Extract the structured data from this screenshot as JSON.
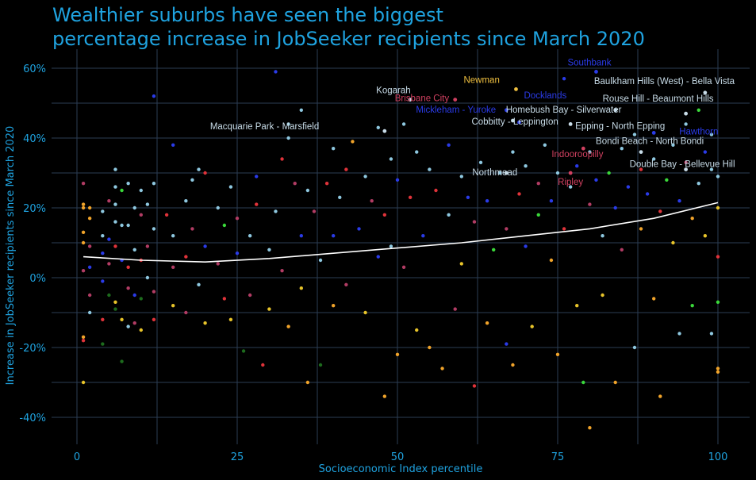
{
  "chart_data": {
    "type": "scatter",
    "title_lines": [
      "Wealthier suburbs have seen the biggest",
      "percentage increase in JobSeeker recipients since March 2020"
    ],
    "xlabel": "Socioeconomic Index percentile",
    "ylabel": "Increase in JobSeeker recipients since March 2020",
    "xlim": [
      -4,
      104
    ],
    "ylim": [
      -48,
      66
    ],
    "xticks": [
      0,
      25,
      50,
      75,
      100
    ],
    "yticks": [
      60,
      40,
      20,
      0,
      -20,
      -40
    ],
    "ytick_labels": [
      "60%",
      "40%",
      "20%",
      "0%",
      "-20%",
      "-40%"
    ],
    "grid": true,
    "palette": [
      "#8ec8e0",
      "#2a3be8",
      "#e0333a",
      "#b23c64",
      "#f0a32a",
      "#e8c42a",
      "#3ad83a",
      "#1d6b1d"
    ],
    "points": [
      [
        1,
        27,
        3
      ],
      [
        1,
        21,
        4
      ],
      [
        1,
        20,
        4
      ],
      [
        1,
        13,
        4
      ],
      [
        1,
        10,
        4
      ],
      [
        1,
        2,
        3
      ],
      [
        1,
        -17,
        4
      ],
      [
        1,
        -18,
        2
      ],
      [
        1,
        -30,
        5
      ],
      [
        2,
        20,
        4
      ],
      [
        2,
        17,
        4
      ],
      [
        2,
        9,
        3
      ],
      [
        2,
        3,
        1
      ],
      [
        2,
        -5,
        3
      ],
      [
        2,
        -10,
        0
      ],
      [
        4,
        19,
        0
      ],
      [
        4,
        12,
        0
      ],
      [
        4,
        7,
        1
      ],
      [
        4,
        -1,
        1
      ],
      [
        4,
        -12,
        2
      ],
      [
        4,
        -19,
        7
      ],
      [
        5,
        22,
        3
      ],
      [
        5,
        11,
        1
      ],
      [
        5,
        4,
        3
      ],
      [
        5,
        -5,
        7
      ],
      [
        6,
        31,
        0
      ],
      [
        6,
        26,
        0
      ],
      [
        6,
        21,
        0
      ],
      [
        6,
        16,
        0
      ],
      [
        6,
        9,
        2
      ],
      [
        6,
        -7,
        5
      ],
      [
        6,
        -9,
        7
      ],
      [
        7,
        25,
        6
      ],
      [
        7,
        15,
        0
      ],
      [
        7,
        5,
        1
      ],
      [
        7,
        -12,
        5
      ],
      [
        7,
        -24,
        7
      ],
      [
        8,
        27,
        0
      ],
      [
        8,
        15,
        0
      ],
      [
        8,
        3,
        2
      ],
      [
        8,
        -3,
        3
      ],
      [
        8,
        -14,
        0
      ],
      [
        9,
        20,
        0
      ],
      [
        9,
        8,
        0
      ],
      [
        9,
        -5,
        1
      ],
      [
        9,
        -13,
        3
      ],
      [
        10,
        25,
        0
      ],
      [
        10,
        18,
        3
      ],
      [
        10,
        5,
        2
      ],
      [
        10,
        -6,
        7
      ],
      [
        10,
        -15,
        5
      ],
      [
        11,
        21,
        0
      ],
      [
        11,
        9,
        3
      ],
      [
        11,
        0,
        0
      ],
      [
        12,
        52,
        1
      ],
      [
        12,
        27,
        0
      ],
      [
        12,
        14,
        0
      ],
      [
        12,
        -4,
        3
      ],
      [
        12,
        -12,
        2
      ],
      [
        14,
        18,
        2
      ],
      [
        15,
        38,
        1
      ],
      [
        15,
        12,
        0
      ],
      [
        15,
        3,
        3
      ],
      [
        15,
        -8,
        5
      ],
      [
        17,
        22,
        0
      ],
      [
        17,
        6,
        2
      ],
      [
        17,
        -10,
        3
      ],
      [
        18,
        28,
        0
      ],
      [
        18,
        14,
        3
      ],
      [
        19,
        31,
        0
      ],
      [
        19,
        -2,
        0
      ],
      [
        20,
        30,
        2
      ],
      [
        20,
        9,
        1
      ],
      [
        20,
        -13,
        5
      ],
      [
        22,
        20,
        0
      ],
      [
        22,
        4,
        3
      ],
      [
        23,
        15,
        6
      ],
      [
        23,
        -6,
        2
      ],
      [
        24,
        26,
        0
      ],
      [
        24,
        -12,
        5
      ],
      [
        25,
        17,
        3
      ],
      [
        25,
        7,
        1
      ],
      [
        26,
        -21,
        7
      ],
      [
        27,
        12,
        0
      ],
      [
        27,
        -5,
        3
      ],
      [
        28,
        29,
        1
      ],
      [
        28,
        21,
        2
      ],
      [
        29,
        -25,
        2
      ],
      [
        30,
        8,
        0
      ],
      [
        30,
        -9,
        5
      ],
      [
        31,
        59,
        1
      ],
      [
        31,
        19,
        0
      ],
      [
        32,
        34,
        2
      ],
      [
        32,
        2,
        3
      ],
      [
        33,
        44,
        0
      ],
      [
        33,
        40,
        0
      ],
      [
        33,
        -14,
        4
      ],
      [
        34,
        27,
        3
      ],
      [
        35,
        48,
        0
      ],
      [
        35,
        12,
        1
      ],
      [
        35,
        -3,
        5
      ],
      [
        36,
        25,
        0
      ],
      [
        36,
        -30,
        4
      ],
      [
        37,
        19,
        3
      ],
      [
        38,
        -25,
        7
      ],
      [
        38,
        5,
        0
      ],
      [
        39,
        27,
        2
      ],
      [
        40,
        37,
        0
      ],
      [
        40,
        12,
        1
      ],
      [
        40,
        -8,
        4
      ],
      [
        41,
        23,
        0
      ],
      [
        42,
        31,
        2
      ],
      [
        42,
        -2,
        3
      ],
      [
        43,
        39,
        4
      ],
      [
        44,
        14,
        1
      ],
      [
        45,
        29,
        0
      ],
      [
        45,
        -10,
        5
      ],
      [
        46,
        22,
        3
      ],
      [
        47,
        43,
        0
      ],
      [
        47,
        6,
        1
      ],
      [
        48,
        -34,
        4
      ],
      [
        48,
        18,
        2
      ],
      [
        49,
        34,
        0
      ],
      [
        49,
        9,
        0
      ],
      [
        50,
        -22,
        4
      ],
      [
        50,
        28,
        1
      ],
      [
        51,
        44,
        0
      ],
      [
        51,
        3,
        3
      ],
      [
        52,
        23,
        2
      ],
      [
        53,
        -15,
        5
      ],
      [
        53,
        36,
        0
      ],
      [
        54,
        12,
        1
      ],
      [
        55,
        -20,
        4
      ],
      [
        55,
        31,
        0
      ],
      [
        56,
        25,
        2
      ],
      [
        57,
        -26,
        4
      ],
      [
        58,
        38,
        1
      ],
      [
        58,
        18,
        0
      ],
      [
        59,
        -9,
        3
      ],
      [
        60,
        29,
        0
      ],
      [
        60,
        4,
        5
      ],
      [
        61,
        23,
        1
      ],
      [
        62,
        -31,
        2
      ],
      [
        62,
        16,
        3
      ],
      [
        63,
        33,
        0
      ],
      [
        64,
        -13,
        4
      ],
      [
        64,
        22,
        1
      ],
      [
        65,
        8,
        6
      ],
      [
        66,
        30,
        0
      ],
      [
        67,
        -19,
        1
      ],
      [
        67,
        14,
        3
      ],
      [
        68,
        36,
        0
      ],
      [
        68,
        -25,
        4
      ],
      [
        69,
        24,
        2
      ],
      [
        70,
        9,
        1
      ],
      [
        70,
        32,
        0
      ],
      [
        71,
        -14,
        5
      ],
      [
        72,
        27,
        3
      ],
      [
        72,
        18,
        6
      ],
      [
        73,
        38,
        0
      ],
      [
        74,
        5,
        4
      ],
      [
        74,
        22,
        1
      ],
      [
        75,
        30,
        0
      ],
      [
        75,
        -22,
        4
      ],
      [
        76,
        57,
        1
      ],
      [
        76,
        14,
        2
      ],
      [
        77,
        26,
        0
      ],
      [
        78,
        -8,
        5
      ],
      [
        78,
        32,
        1
      ],
      [
        79,
        -30,
        6
      ],
      [
        80,
        -43,
        4
      ],
      [
        80,
        21,
        3
      ],
      [
        80,
        36,
        0
      ],
      [
        81,
        28,
        1
      ],
      [
        82,
        12,
        0
      ],
      [
        82,
        -5,
        5
      ],
      [
        83,
        30,
        6
      ],
      [
        84,
        20,
        1
      ],
      [
        84,
        -30,
        4
      ],
      [
        85,
        37,
        0
      ],
      [
        85,
        8,
        3
      ],
      [
        86,
        26,
        1
      ],
      [
        87,
        41,
        0
      ],
      [
        87,
        -20,
        0
      ],
      [
        88,
        14,
        4
      ],
      [
        88,
        31,
        2
      ],
      [
        89,
        24,
        1
      ],
      [
        90,
        -6,
        4
      ],
      [
        90,
        34,
        0
      ],
      [
        91,
        19,
        2
      ],
      [
        91,
        -34,
        4
      ],
      [
        92,
        28,
        6
      ],
      [
        93,
        38,
        0
      ],
      [
        93,
        10,
        5
      ],
      [
        94,
        22,
        1
      ],
      [
        94,
        -16,
        0
      ],
      [
        95,
        33,
        3
      ],
      [
        95,
        44,
        0
      ],
      [
        96,
        17,
        4
      ],
      [
        96,
        -8,
        6
      ],
      [
        97,
        27,
        0
      ],
      [
        97,
        48,
        6
      ],
      [
        98,
        36,
        1
      ],
      [
        98,
        12,
        5
      ],
      [
        99,
        31,
        0
      ],
      [
        99,
        -16,
        0
      ],
      [
        99,
        41,
        0
      ],
      [
        100,
        -26,
        4
      ],
      [
        100,
        -27,
        4
      ],
      [
        100,
        6,
        2
      ],
      [
        100,
        -7,
        6
      ],
      [
        100,
        29,
        0
      ],
      [
        100,
        20,
        5
      ]
    ],
    "trend": {
      "x": [
        1,
        10,
        20,
        30,
        40,
        50,
        60,
        70,
        80,
        90,
        100
      ],
      "y": [
        6,
        5,
        4.5,
        5.5,
        7,
        8.5,
        10,
        12,
        14,
        17,
        21.5
      ]
    },
    "labeled_points": [
      {
        "label": "Southbank",
        "x": 81,
        "y": 59,
        "color": "#2a3be8"
      },
      {
        "label": "Newman",
        "x": 68.5,
        "y": 54,
        "color": "#f0c040"
      },
      {
        "label": "Docklands",
        "x": 69,
        "y": 44.5,
        "color": "#2a3be8"
      },
      {
        "label": "Kogarah",
        "x": 52,
        "y": 51,
        "color": "#c8dce8"
      },
      {
        "label": "Brisbane City",
        "x": 59,
        "y": 51,
        "color": "#d04060"
      },
      {
        "label": "Mickleham - Yuroke",
        "x": 67,
        "y": 48,
        "color": "#2a3be8"
      },
      {
        "label": "Homebush Bay - Silverwater",
        "x": 84,
        "y": 48,
        "color": "#c8dce8"
      },
      {
        "label": "Cobbitty - Leppington",
        "x": 68,
        "y": 45,
        "color": "#c8dce8"
      },
      {
        "label": "Epping - North Epping",
        "x": 77,
        "y": 44,
        "color": "#c8dce8"
      },
      {
        "label": "Rouse Hill - Beaumont Hills",
        "x": 95,
        "y": 47,
        "color": "#c8dce8"
      },
      {
        "label": "Baulkham Hills (West) - Bella Vista",
        "x": 98,
        "y": 53,
        "color": "#c8dce8"
      },
      {
        "label": "Hawthorn",
        "x": 90,
        "y": 41.5,
        "color": "#2a3be8"
      },
      {
        "label": "Macquarie Park - Marsfield",
        "x": 48,
        "y": 42,
        "color": "#c8dce8"
      },
      {
        "label": "Bondi Beach - North Bondi",
        "x": 88,
        "y": 36,
        "color": "#c8dce8"
      },
      {
        "label": "Indooroopilly",
        "x": 79,
        "y": 37,
        "color": "#d04060"
      },
      {
        "label": "Double Bay - Bellevue Hill",
        "x": 95,
        "y": 31,
        "color": "#c8dce8"
      },
      {
        "label": "Northmead",
        "x": 67,
        "y": 30,
        "color": "#c8dce8"
      },
      {
        "label": "Ripley",
        "x": 77,
        "y": 30,
        "color": "#d04060"
      }
    ]
  }
}
